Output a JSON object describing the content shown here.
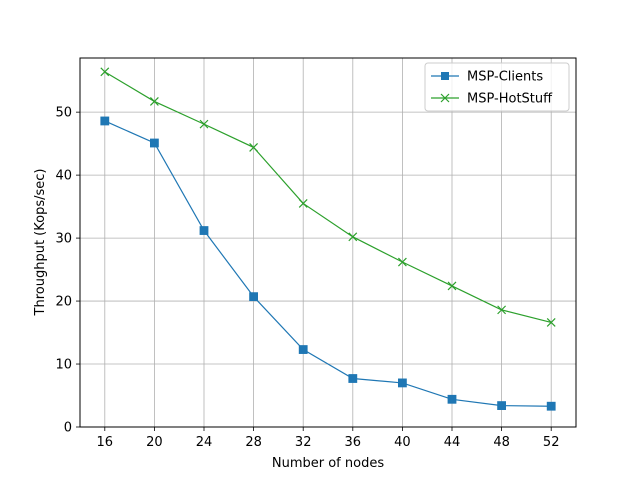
{
  "chart_data": {
    "type": "line",
    "title": "",
    "xlabel": "Number of nodes",
    "ylabel": "Throughput (Kops/sec)",
    "x": [
      16,
      20,
      24,
      28,
      32,
      36,
      40,
      44,
      48,
      52
    ],
    "xlim": [
      14.0,
      54.0
    ],
    "ylim": [
      0,
      58.6
    ],
    "xticks": [
      16,
      20,
      24,
      28,
      32,
      36,
      40,
      44,
      48,
      52
    ],
    "yticks": [
      0,
      10,
      20,
      30,
      40,
      50
    ],
    "grid": true,
    "legend_position": "top-right",
    "series": [
      {
        "name": "MSP-Clients",
        "color": "#1f77b4",
        "marker": "square",
        "values": [
          48.6,
          45.1,
          31.2,
          20.7,
          12.3,
          7.7,
          7.0,
          4.4,
          3.4,
          3.3
        ]
      },
      {
        "name": "MSP-HotStuff",
        "color": "#2ca02c",
        "marker": "x",
        "values": [
          56.4,
          51.7,
          48.1,
          44.4,
          35.5,
          30.2,
          26.2,
          22.4,
          18.6,
          16.6
        ]
      }
    ]
  }
}
